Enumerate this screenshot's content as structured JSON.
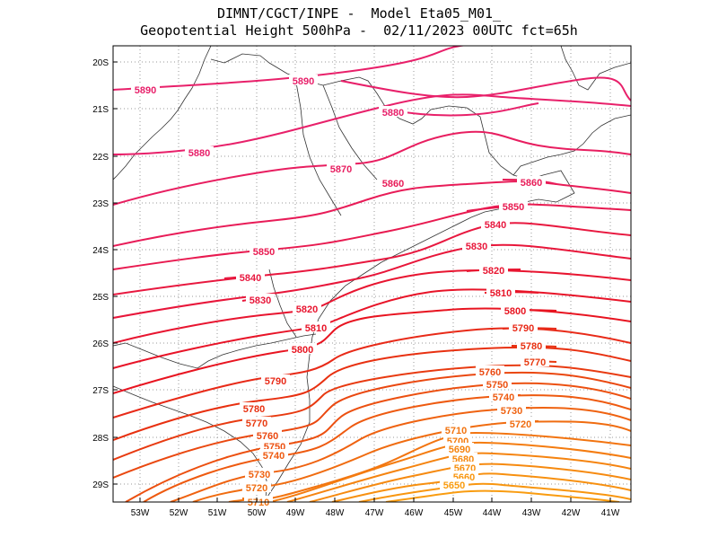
{
  "title": {
    "line1": "DIMNT/CGCT/INPE -  Model Eta05_M01_",
    "line2": "Geopotential Height 500hPa -  02/11/2023 00UTC fct=65h"
  },
  "axes": {
    "lon_labels": [
      "53W",
      "52W",
      "51W",
      "50W",
      "49W",
      "48W",
      "47W",
      "46W",
      "45W",
      "44W",
      "43W",
      "42W",
      "41W"
    ],
    "lat_labels": [
      "20S",
      "21S",
      "22S",
      "23S",
      "24S",
      "25S",
      "26S",
      "27S",
      "28S",
      "29S"
    ]
  },
  "colors": {
    "c5890": "#e8206a",
    "c5880": "#e8206a",
    "c5870": "#e81e60",
    "c5860": "#e81c58",
    "c5850": "#e81a50",
    "c5840": "#e8183f",
    "c5830": "#e8163a",
    "c5820": "#e81530",
    "c5810": "#e81428",
    "c5800": "#e81420",
    "c5790": "#e82a18",
    "c5780": "#e83010",
    "c5770": "#e83a10",
    "c5760": "#ea4810",
    "c5750": "#ec5010",
    "c5740": "#ee5a10",
    "c5730": "#ef6210",
    "c5720": "#f06c10",
    "c5710": "#f27410",
    "c5700": "#f47c10",
    "c5690": "#f58410",
    "c5680": "#f68a10",
    "c5670": "#f79010",
    "c5660": "#f89610",
    "c5650": "#f99c10"
  },
  "contour_labels": [
    {
      "value": "5890"
    },
    {
      "value": "5880"
    },
    {
      "value": "5870"
    },
    {
      "value": "5860"
    },
    {
      "value": "5850"
    },
    {
      "value": "5840"
    },
    {
      "value": "5830"
    },
    {
      "value": "5820"
    },
    {
      "value": "5810"
    },
    {
      "value": "5800"
    },
    {
      "value": "5790"
    },
    {
      "value": "5780"
    },
    {
      "value": "5770"
    },
    {
      "value": "5760"
    },
    {
      "value": "5750"
    },
    {
      "value": "5740"
    },
    {
      "value": "5730"
    },
    {
      "value": "5720"
    },
    {
      "value": "5710"
    },
    {
      "value": "5700"
    },
    {
      "value": "5690"
    },
    {
      "value": "5680"
    },
    {
      "value": "5670"
    },
    {
      "value": "5660"
    },
    {
      "value": "5650"
    }
  ]
}
